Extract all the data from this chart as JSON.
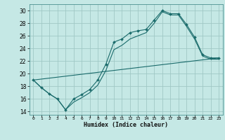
{
  "title": "",
  "xlabel": "Humidex (Indice chaleur)",
  "xlim": [
    -0.5,
    23.5
  ],
  "ylim": [
    13.5,
    31
  ],
  "yticks": [
    14,
    16,
    18,
    20,
    22,
    24,
    26,
    28,
    30
  ],
  "xticks": [
    0,
    1,
    2,
    3,
    4,
    5,
    6,
    7,
    8,
    9,
    10,
    11,
    12,
    13,
    14,
    15,
    16,
    17,
    18,
    19,
    20,
    21,
    22,
    23
  ],
  "background_color": "#c5e8e5",
  "grid_color": "#a0c8c5",
  "line_color": "#1a6b6b",
  "line1_x": [
    0,
    1,
    2,
    3,
    4,
    5,
    6,
    7,
    8,
    9,
    10,
    11,
    12,
    13,
    14,
    15,
    16,
    17,
    18,
    19,
    20,
    21,
    22,
    23
  ],
  "line1_y": [
    19.0,
    17.8,
    16.8,
    16.0,
    14.3,
    16.0,
    16.7,
    17.5,
    19.0,
    21.5,
    25.0,
    25.5,
    26.5,
    26.8,
    27.0,
    28.5,
    30.0,
    29.5,
    29.5,
    27.8,
    25.8,
    23.0,
    22.5,
    22.5
  ],
  "line2_x": [
    0,
    1,
    2,
    3,
    4,
    5,
    6,
    7,
    8,
    9,
    10,
    11,
    12,
    13,
    14,
    15,
    16,
    17,
    18,
    19,
    20,
    21,
    22,
    23
  ],
  "line2_y": [
    19.0,
    17.8,
    16.8,
    16.0,
    14.3,
    15.5,
    16.2,
    17.0,
    18.2,
    20.5,
    23.8,
    24.5,
    25.5,
    26.0,
    26.5,
    28.0,
    29.8,
    29.3,
    29.3,
    27.5,
    25.5,
    22.8,
    22.3,
    22.3
  ],
  "line3_x": [
    0,
    23
  ],
  "line3_y": [
    19.0,
    22.5
  ]
}
